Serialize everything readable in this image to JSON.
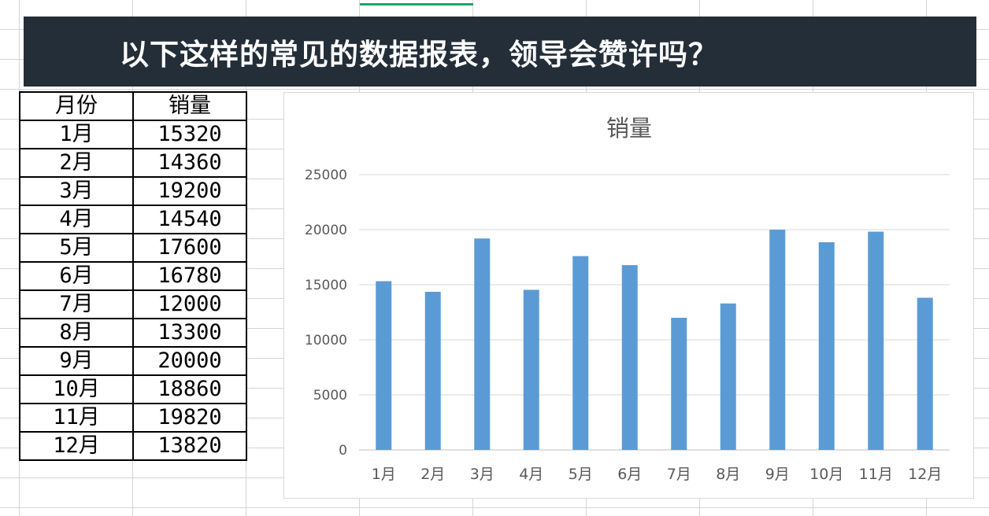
{
  "banner": {
    "title": "以下这样的常见的数据报表，领导会赞许吗？"
  },
  "table": {
    "headers": [
      "月份",
      "销量"
    ],
    "rows": [
      [
        "1月",
        "15320"
      ],
      [
        "2月",
        "14360"
      ],
      [
        "3月",
        "19200"
      ],
      [
        "4月",
        "14540"
      ],
      [
        "5月",
        "17600"
      ],
      [
        "6月",
        "16780"
      ],
      [
        "7月",
        "12000"
      ],
      [
        "8月",
        "13300"
      ],
      [
        "9月",
        "20000"
      ],
      [
        "10月",
        "18860"
      ],
      [
        "11月",
        "19820"
      ],
      [
        "12月",
        "13820"
      ]
    ]
  },
  "chart_data": {
    "type": "bar",
    "title": "销量",
    "categories": [
      "1月",
      "2月",
      "3月",
      "4月",
      "5月",
      "6月",
      "7月",
      "8月",
      "9月",
      "10月",
      "11月",
      "12月"
    ],
    "values": [
      15320,
      14360,
      19200,
      14540,
      17600,
      16780,
      12000,
      13300,
      20000,
      18860,
      19820,
      13820
    ],
    "ylim": [
      0,
      25000
    ],
    "yticks": [
      0,
      5000,
      10000,
      15000,
      20000,
      25000
    ],
    "grid": true,
    "bar_color": "#5b9bd5"
  }
}
